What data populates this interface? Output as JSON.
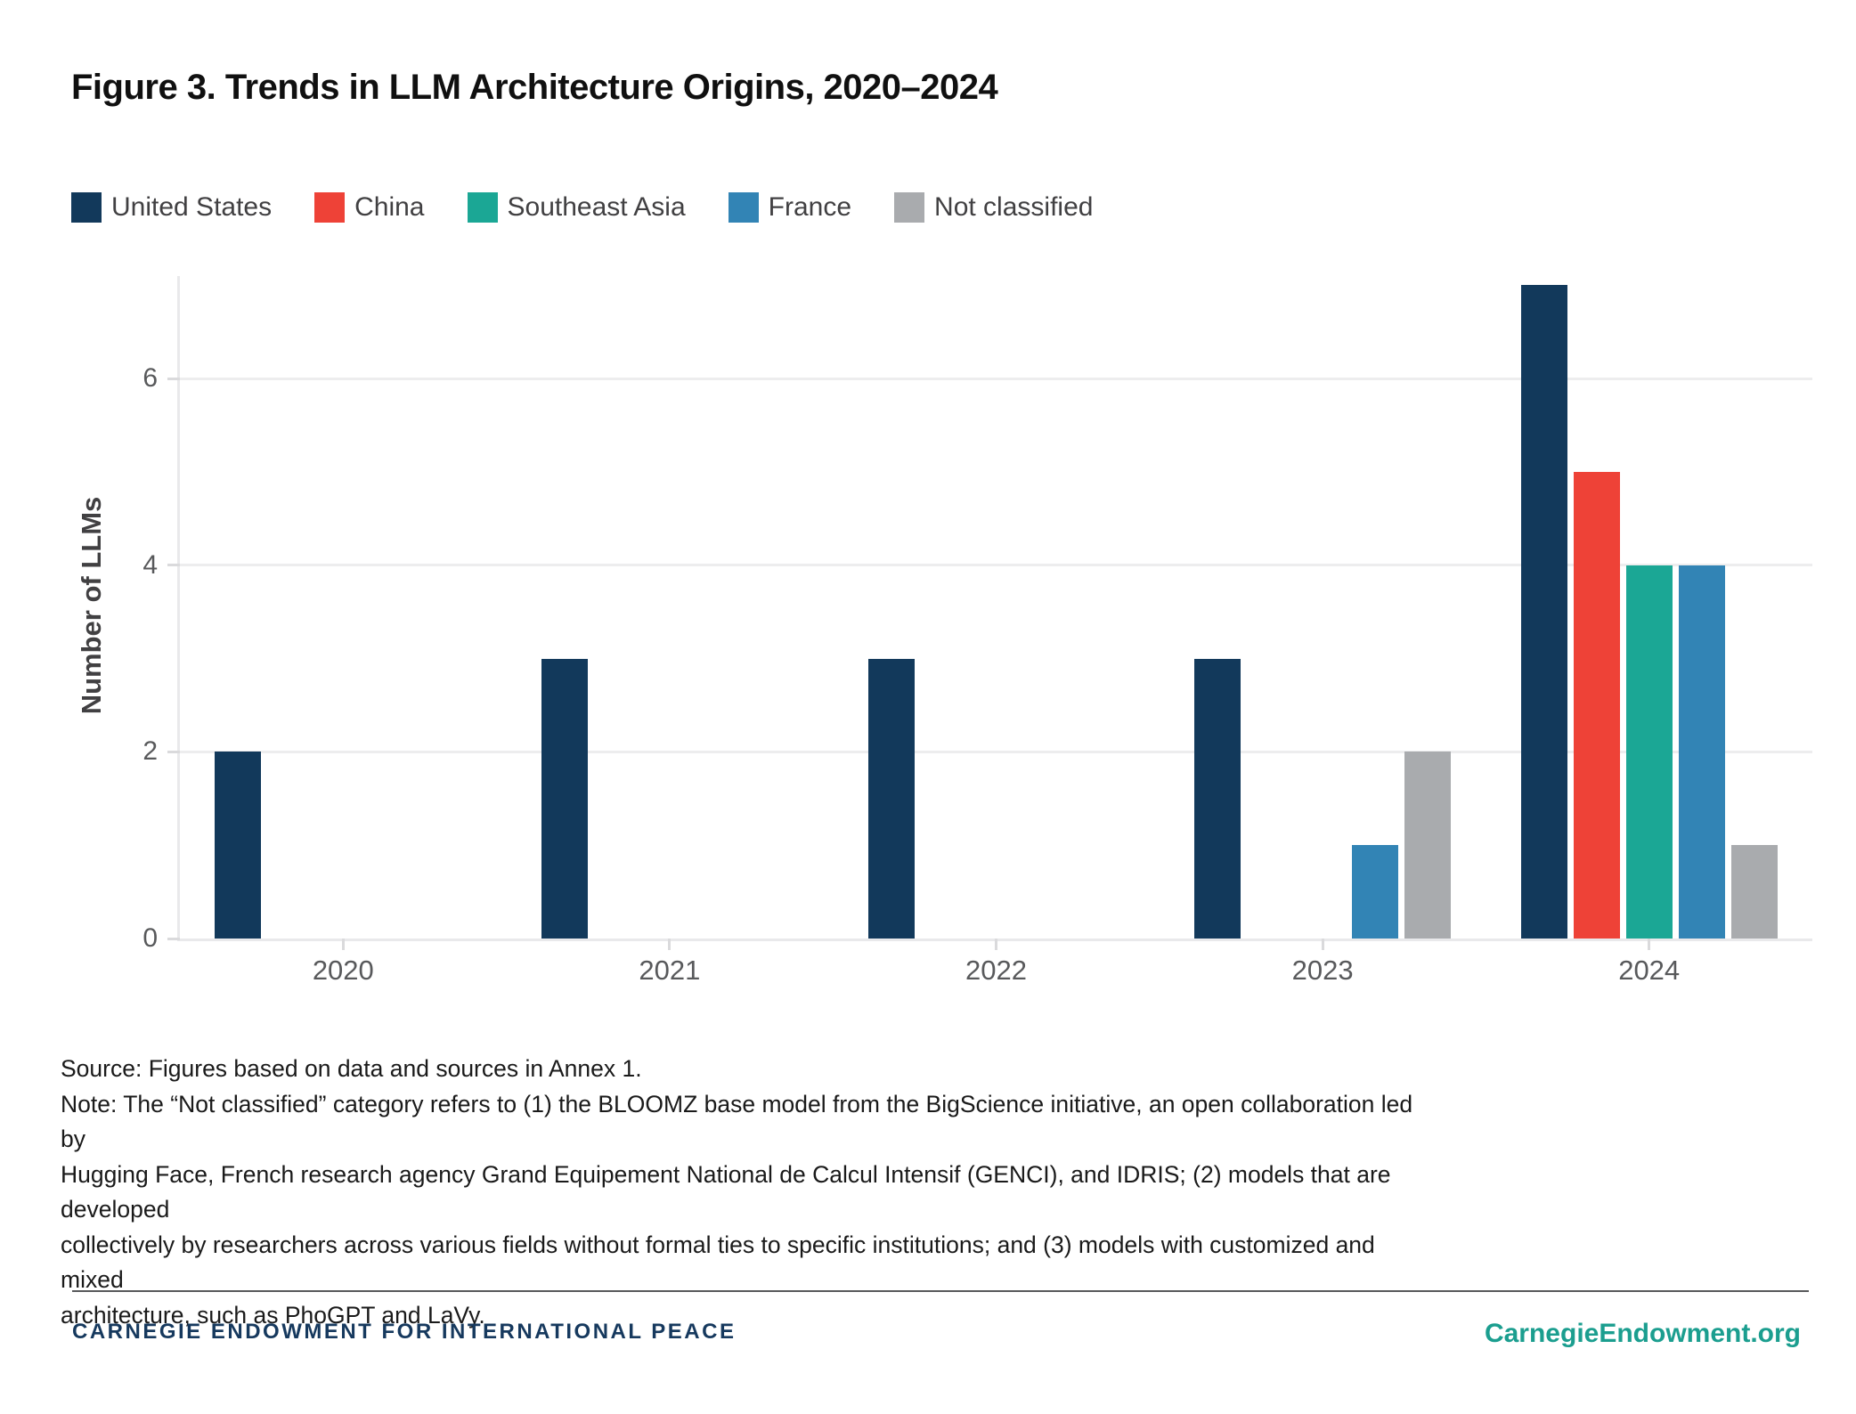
{
  "title": "Figure 3. Trends in LLM Architecture Origins, 2020–2024",
  "legend": [
    {
      "label": "United States",
      "color": "#12395b"
    },
    {
      "label": "China",
      "color": "#ee4237"
    },
    {
      "label": "Southeast Asia",
      "color": "#1ba795"
    },
    {
      "label": "France",
      "color": "#3284b5"
    },
    {
      "label": "Not classified",
      "color": "#a9abae"
    }
  ],
  "chart_data": {
    "type": "bar",
    "title": "Figure 3. Trends in LLM Architecture Origins, 2020–2024",
    "categories": [
      "2020",
      "2021",
      "2022",
      "2023",
      "2024"
    ],
    "series": [
      {
        "name": "United States",
        "color": "#12395b",
        "values": [
          2,
          3,
          3,
          3,
          7
        ]
      },
      {
        "name": "China",
        "color": "#ee4237",
        "values": [
          0,
          0,
          0,
          0,
          5
        ]
      },
      {
        "name": "Southeast Asia",
        "color": "#1ba795",
        "values": [
          0,
          0,
          0,
          0,
          4
        ]
      },
      {
        "name": "France",
        "color": "#3284b5",
        "values": [
          0,
          0,
          0,
          1,
          4
        ]
      },
      {
        "name": "Not classified",
        "color": "#a9abae",
        "values": [
          0,
          0,
          0,
          2,
          1
        ]
      }
    ],
    "xlabel": "",
    "ylabel": "Number of LLMs",
    "yticks": [
      0,
      2,
      4,
      6
    ],
    "ylim": [
      0,
      7.1
    ],
    "grid": true,
    "legend_position": "top-left"
  },
  "note": {
    "source_line": "Source: Figures based on data and sources in Annex 1.",
    "note_lines": [
      "Note: The “Not classified” category refers to (1) the BLOOMZ base model from the BigScience initiative, an open collaboration led by",
      "Hugging Face, French research agency Grand Equipement National de Calcul Intensif (GENCI), and IDRIS; (2) models that are developed",
      "collectively by researchers across various fields without formal ties to specific institutions; and (3) models with customized and mixed",
      "architecture, such as PhoGPT and LaVy."
    ]
  },
  "footer": {
    "org": "CARNEGIE ENDOWMENT FOR INTERNATIONAL PEACE",
    "website": "CarnegieEndowment.org"
  },
  "colors": {
    "grid": "#ededee",
    "axis": "#e9e9eb",
    "tick": "#dadadc",
    "tick_text": "#58595b",
    "axis_title_text": "#414042",
    "footer_navy": "#16395e",
    "footer_teal": "#1b9e8f"
  }
}
